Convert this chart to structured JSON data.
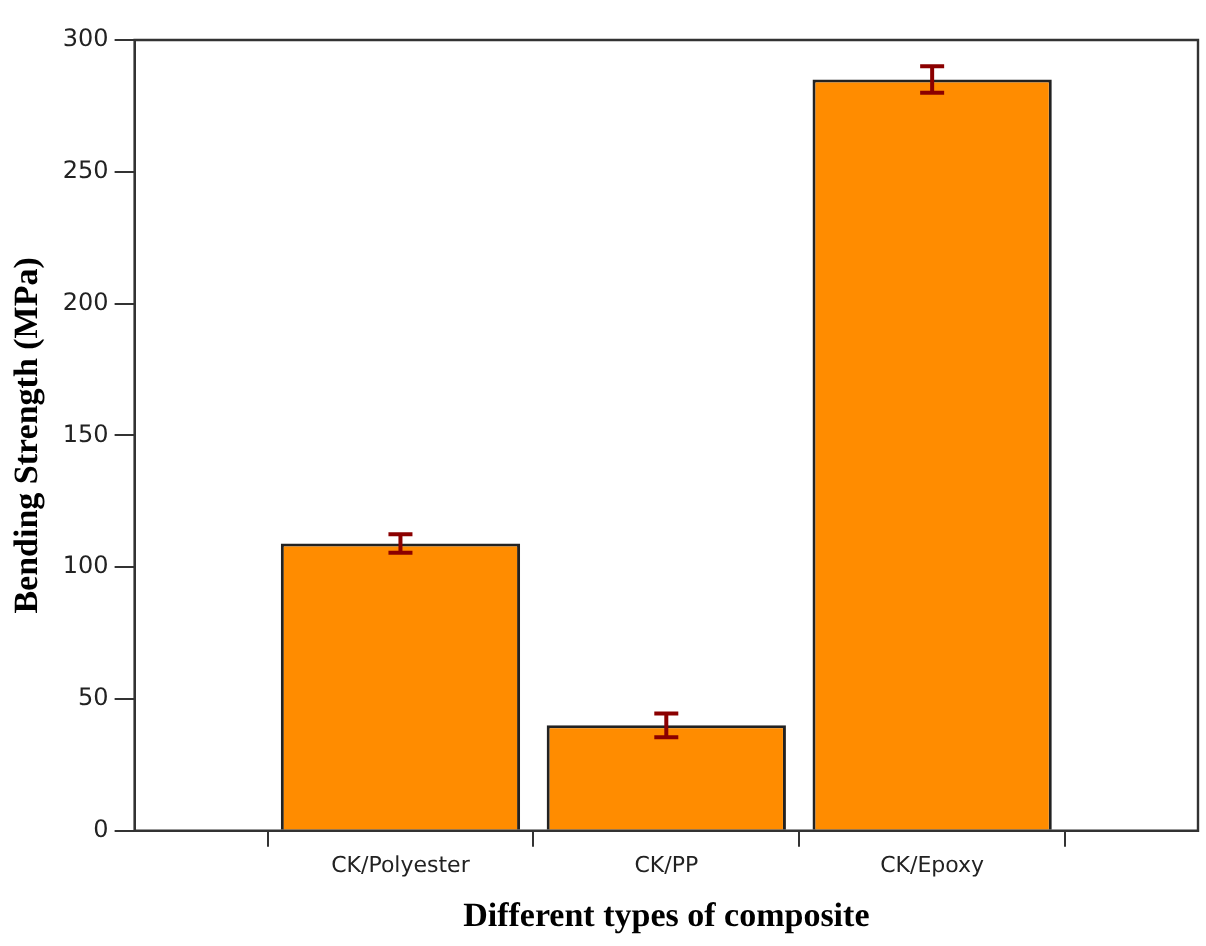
{
  "chart_data": {
    "type": "bar",
    "xlabel": "Different types of composite",
    "ylabel": "Bending Strength (MPa)",
    "categories": [
      null,
      "CK/Polyester",
      "CK/PP",
      "CK/Epoxy",
      null
    ],
    "values": [
      null,
      109,
      40,
      285,
      null
    ],
    "errors": [
      null,
      3.5,
      4.5,
      5,
      null
    ],
    "color": "#ff8c00",
    "ylim": [
      0,
      300
    ],
    "yticks": [
      0,
      50,
      100,
      150,
      200,
      250,
      300
    ],
    "grid": false,
    "legend": false
  }
}
